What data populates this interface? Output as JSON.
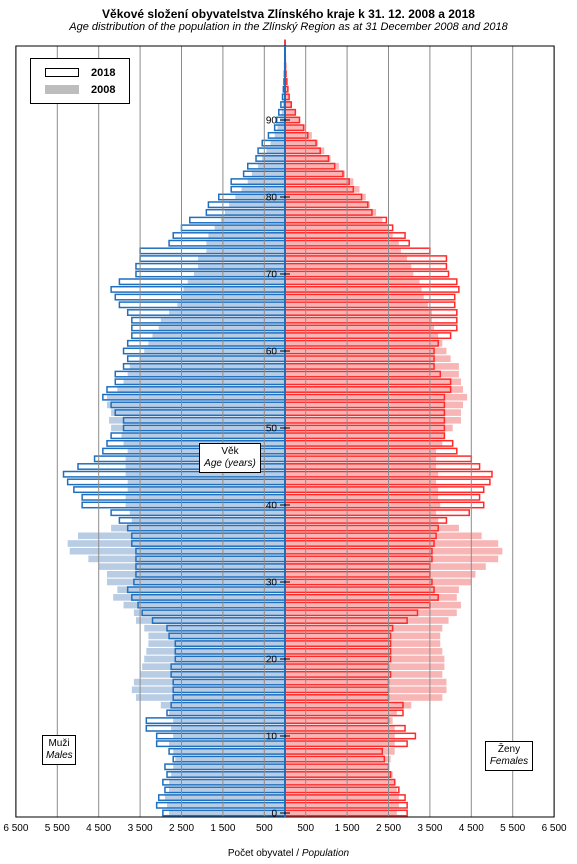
{
  "title": "Věkové složení obyvatelstva Zlínského kraje k 31. 12. 2008 a 2018",
  "subtitle": "Age distribution of the population  in the Zlínský  Region as at 31 December 2008 and 2018",
  "xlabel": {
    "cz": "Počet obyvatel",
    "en": "Population"
  },
  "center_label": {
    "cz": "Věk",
    "en": "Age (years)"
  },
  "males_label": {
    "cz": "Muži",
    "en": "Males"
  },
  "females_label": {
    "cz": "Ženy",
    "en": "Females"
  },
  "legend": [
    {
      "label": "2018",
      "style": "outline"
    },
    {
      "label": "2008",
      "style": "filled"
    }
  ],
  "colors": {
    "male_2018": "#1f6fbf",
    "female_2018": "#ff2a2a",
    "male_2008": "#b8cce4",
    "female_2008": "#f7b5b5",
    "grid": "#8c8c8c"
  },
  "chart_data": {
    "type": "population-pyramid",
    "x_ticks": [
      "6 500",
      "5 500",
      "4 500",
      "3 500",
      "2 500",
      "1 500",
      "500",
      "500",
      "1 500",
      "2 500",
      "3 500",
      "4 500",
      "5 500",
      "6 500"
    ],
    "y_ticks": [
      "0",
      "10",
      "20",
      "30",
      "40",
      "50",
      "60",
      "70",
      "80",
      "90"
    ],
    "ages": [
      0,
      1,
      2,
      3,
      4,
      5,
      6,
      7,
      8,
      9,
      10,
      11,
      12,
      13,
      14,
      15,
      16,
      17,
      18,
      19,
      20,
      21,
      22,
      23,
      24,
      25,
      26,
      27,
      28,
      29,
      30,
      31,
      32,
      33,
      34,
      35,
      36,
      37,
      38,
      39,
      40,
      41,
      42,
      43,
      44,
      45,
      46,
      47,
      48,
      49,
      50,
      51,
      52,
      53,
      54,
      55,
      56,
      57,
      58,
      59,
      60,
      61,
      62,
      63,
      64,
      65,
      66,
      67,
      68,
      69,
      70,
      71,
      72,
      73,
      74,
      75,
      76,
      77,
      78,
      79,
      80,
      81,
      82,
      83,
      84,
      85,
      86,
      87,
      88,
      89,
      90,
      91,
      92,
      93,
      94,
      95,
      96,
      97,
      98,
      99,
      100
    ],
    "series": [
      {
        "name": "2018",
        "side": "males",
        "values": [
          2950,
          3100,
          3050,
          2900,
          2950,
          2850,
          2900,
          2700,
          2800,
          3100,
          3100,
          3350,
          3350,
          2850,
          2750,
          2700,
          2700,
          2700,
          2750,
          2750,
          2650,
          2650,
          2650,
          2800,
          2850,
          3200,
          3450,
          3550,
          3700,
          3800,
          3650,
          3600,
          3600,
          3600,
          3600,
          3700,
          3700,
          3800,
          4000,
          4200,
          4900,
          4900,
          5100,
          5250,
          5350,
          5000,
          4600,
          4400,
          4300,
          4200,
          3900,
          3900,
          4100,
          4200,
          4400,
          4300,
          4100,
          4100,
          3900,
          3800,
          3900,
          3800,
          3700,
          3700,
          3700,
          3800,
          4000,
          4100,
          4200,
          4000,
          3600,
          3600,
          3500,
          3500,
          2800,
          2700,
          2500,
          2300,
          1900,
          1850,
          1600,
          1300,
          1300,
          1000,
          900,
          700,
          650,
          550,
          400,
          250,
          200,
          150,
          100,
          60,
          40,
          25,
          15,
          8,
          5,
          3,
          2
        ]
      },
      {
        "name": "2018",
        "side": "females",
        "values": [
          2950,
          2950,
          2900,
          2750,
          2650,
          2550,
          2500,
          2400,
          2350,
          2950,
          3150,
          2900,
          2500,
          2850,
          2850,
          2500,
          2500,
          2500,
          2550,
          2500,
          2550,
          2550,
          2550,
          2550,
          2600,
          2950,
          3200,
          3500,
          3700,
          3600,
          3550,
          3500,
          3500,
          3550,
          3550,
          3600,
          3650,
          3700,
          3900,
          4450,
          4800,
          4700,
          4800,
          4950,
          5000,
          4700,
          4500,
          4150,
          4050,
          3850,
          3850,
          3850,
          3850,
          3850,
          3850,
          4000,
          4000,
          3750,
          3600,
          3600,
          3600,
          3700,
          4000,
          4150,
          4150,
          4150,
          4100,
          4100,
          4200,
          4150,
          3950,
          3900,
          3900,
          3500,
          3000,
          2900,
          2600,
          2450,
          2100,
          2000,
          1850,
          1650,
          1550,
          1400,
          1200,
          1050,
          850,
          750,
          550,
          450,
          350,
          250,
          150,
          100,
          70,
          45,
          25,
          15,
          8,
          4,
          2
        ]
      },
      {
        "name": "2008",
        "side": "males",
        "values": [
          2800,
          2850,
          2900,
          2800,
          2800,
          2750,
          2700,
          2650,
          2700,
          2800,
          2700,
          2750,
          2700,
          2800,
          3000,
          3600,
          3700,
          3650,
          3500,
          3450,
          3400,
          3350,
          3300,
          3300,
          3400,
          3600,
          3650,
          3900,
          4150,
          4050,
          4300,
          4300,
          4500,
          4750,
          5200,
          5250,
          5000,
          4200,
          3700,
          3750,
          3850,
          3850,
          3800,
          3800,
          3850,
          3850,
          3850,
          3800,
          3900,
          3950,
          4200,
          4250,
          4200,
          4300,
          4300,
          4050,
          3900,
          3800,
          3750,
          3500,
          3400,
          3300,
          3200,
          3050,
          3000,
          2800,
          2600,
          2500,
          2450,
          2350,
          2200,
          2100,
          2100,
          1900,
          1900,
          1850,
          1700,
          1550,
          1450,
          1350,
          1200,
          1050,
          900,
          800,
          650,
          550,
          450,
          350,
          250,
          180,
          120,
          80,
          50,
          30,
          20,
          12,
          7,
          4,
          2,
          1,
          1
        ]
      },
      {
        "name": "2008",
        "side": "females",
        "values": [
          2700,
          2750,
          2750,
          2700,
          2650,
          2600,
          2500,
          2550,
          2650,
          2650,
          2650,
          2650,
          2600,
          2700,
          3050,
          3800,
          3900,
          3900,
          3800,
          3850,
          3850,
          3800,
          3750,
          3750,
          3800,
          3950,
          4150,
          4250,
          4150,
          4200,
          4500,
          4600,
          4850,
          5150,
          5250,
          5150,
          4750,
          4200,
          3700,
          3650,
          3750,
          3700,
          3700,
          3650,
          3700,
          3650,
          3650,
          3650,
          3800,
          3850,
          4050,
          4250,
          4250,
          4300,
          4400,
          4300,
          4250,
          4200,
          4200,
          4000,
          3900,
          3800,
          3700,
          3600,
          3550,
          3550,
          3450,
          3350,
          3300,
          3250,
          3100,
          3050,
          2950,
          2800,
          2750,
          2600,
          2500,
          2350,
          2200,
          2050,
          1950,
          1800,
          1650,
          1450,
          1300,
          1100,
          950,
          800,
          650,
          480,
          350,
          250,
          170,
          110,
          70,
          40,
          25,
          12,
          6,
          3,
          2
        ]
      }
    ]
  }
}
